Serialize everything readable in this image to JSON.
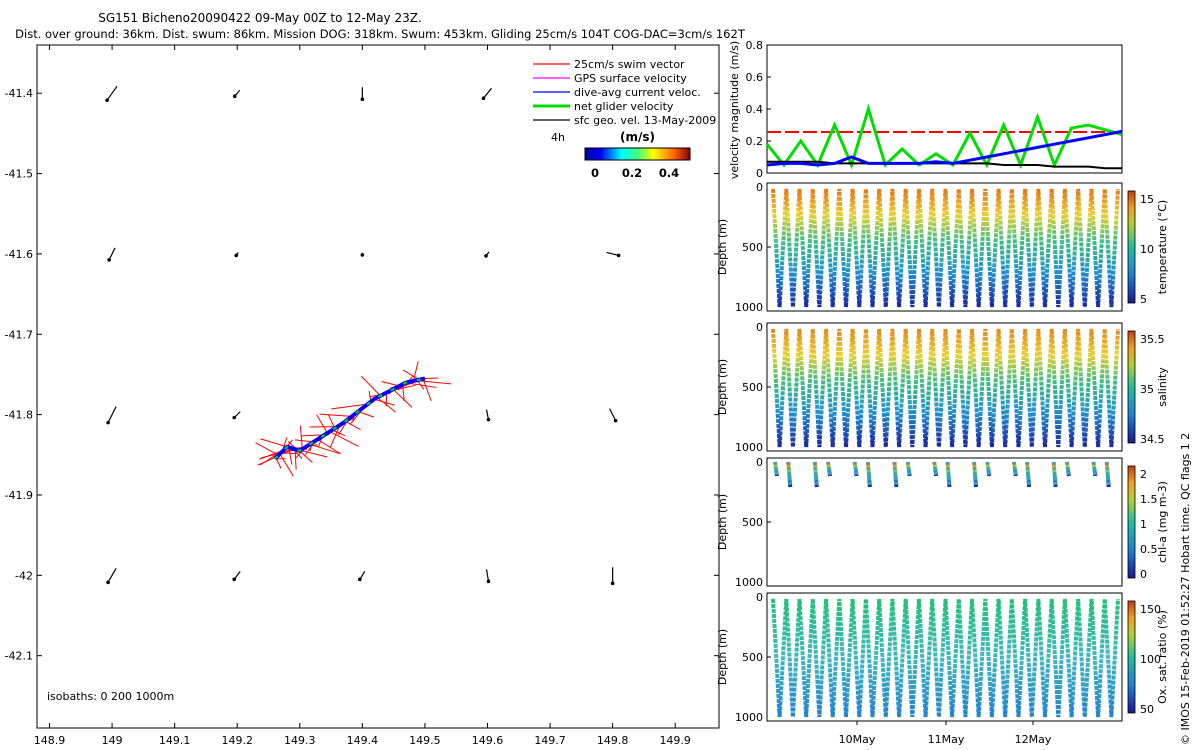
{
  "header": {
    "title": "SG151 Bicheno20090422 09-May 00Z to 12-May 23Z.",
    "subtitle": "Dist. over ground: 36km. Dist. swum: 86km. Mission DOG: 318km. Swum: 453km. Gliding 25cm/s 104T COG-DAC=3cm/s 162T"
  },
  "map": {
    "x_ticks": [
      "148.9",
      "149",
      "149.1",
      "149.2",
      "149.3",
      "149.4",
      "149.5",
      "149.6",
      "149.7",
      "149.8",
      "149.9"
    ],
    "y_ticks": [
      "-41.4",
      "-41.5",
      "-41.6",
      "-41.7",
      "-41.8",
      "-41.9",
      "-42",
      "-42.1"
    ],
    "xlim": [
      148.88,
      149.97
    ],
    "ylim": [
      -42.19,
      -41.34
    ],
    "isobaths_label": "isobaths: 0   200   1000m",
    "legend": [
      {
        "label": "25cm/s swim vector",
        "color": "#ff0000"
      },
      {
        "label": "GPS surface velocity",
        "color": "#ff00ff"
      },
      {
        "label": "dive-avg current veloc.",
        "color": "#0000ff"
      },
      {
        "label": "net glider velocity",
        "color": "#00dd00"
      },
      {
        "label": "sfc geo. vel. 13-May-2009",
        "color": "#000000"
      }
    ],
    "speed_colorbar": {
      "title": "(m/s)",
      "time_label": "4h",
      "ticks": [
        "0",
        "0.2",
        "0.4"
      ]
    }
  },
  "velocity_panel": {
    "ylabel": "velocity magnitude (m/s)",
    "y_ticks": [
      "0",
      "0.2",
      "0.4",
      "0.6",
      "0.8"
    ]
  },
  "depth_panels": [
    {
      "ylabel": "Depth (m)",
      "y_ticks": [
        "0",
        "500",
        "1000"
      ],
      "cbar_label": "temperature (°C)",
      "cbar_ticks": [
        "5",
        "10",
        "15"
      ],
      "color_top": "#e06018"
    },
    {
      "ylabel": "Depth (m)",
      "y_ticks": [
        "0",
        "500",
        "1000"
      ],
      "cbar_label": "salinity",
      "cbar_ticks": [
        "34.5",
        "35",
        "35.5"
      ],
      "color_top": "#e07818"
    },
    {
      "ylabel": "Depth (m)",
      "y_ticks": [
        "0",
        "500",
        "1000"
      ],
      "cbar_label": "chl-a (mg m-3)",
      "cbar_ticks": [
        "0",
        "0.5",
        "1",
        "1.5",
        "2"
      ],
      "color_top": "#40c080"
    },
    {
      "ylabel": "Depth (m)",
      "y_ticks": [
        "0",
        "500",
        "1000"
      ],
      "cbar_label": "Ox. sat. ratio (%)",
      "cbar_ticks": [
        "50",
        "100",
        "150"
      ],
      "color_top": "#20c070"
    }
  ],
  "time_axis": {
    "labels": [
      "10May",
      "11May",
      "12May"
    ]
  },
  "footer_credit": "© IMOS 15-Feb-2019 01:52:27 Hobart time. QC flags 1  2",
  "chart_data": [
    {
      "type": "scatter",
      "title": "SG151 Bicheno20090422 09-May 00Z to 12-May 23Z.",
      "xlabel": "",
      "ylabel": "",
      "xlim": [
        148.88,
        149.97
      ],
      "ylim": [
        -42.19,
        -41.34
      ],
      "series": [
        {
          "name": "dive-avg current veloc.",
          "x": [
            149.26,
            149.28,
            149.3,
            149.33,
            149.37,
            149.42,
            149.47,
            149.5
          ],
          "y": [
            -41.855,
            -41.84,
            -41.845,
            -41.83,
            -41.81,
            -41.78,
            -41.76,
            -41.755
          ]
        }
      ]
    },
    {
      "type": "line",
      "ylabel": "velocity magnitude (m/s)",
      "ylim": [
        0,
        0.8
      ],
      "series": [
        {
          "name": "25cm/s swim vector",
          "values": [
            0.25,
            0.25
          ]
        },
        {
          "name": "dive-avg current veloc.",
          "values": [
            0.05,
            0.06,
            0.06,
            0.05,
            0.06,
            0.1,
            0.06,
            0.06,
            0.06,
            0.06,
            0.07,
            0.06,
            0.08,
            0.1,
            0.12,
            0.14,
            0.16,
            0.18,
            0.2,
            0.22,
            0.24,
            0.26
          ]
        },
        {
          "name": "net glider velocity",
          "values": [
            0.18,
            0.05,
            0.2,
            0.05,
            0.3,
            0.05,
            0.4,
            0.05,
            0.15,
            0.05,
            0.12,
            0.05,
            0.25,
            0.05,
            0.3,
            0.05,
            0.35,
            0.05,
            0.28,
            0.3,
            0.27,
            0.24
          ]
        },
        {
          "name": "sfc geo. vel. 13-May-2009",
          "values": [
            0.07,
            0.07,
            0.07,
            0.07,
            0.06,
            0.06,
            0.06,
            0.06,
            0.06,
            0.06,
            0.06,
            0.06,
            0.06,
            0.06,
            0.05,
            0.05,
            0.05,
            0.04,
            0.04,
            0.04,
            0.03,
            0.03
          ]
        }
      ]
    }
  ]
}
